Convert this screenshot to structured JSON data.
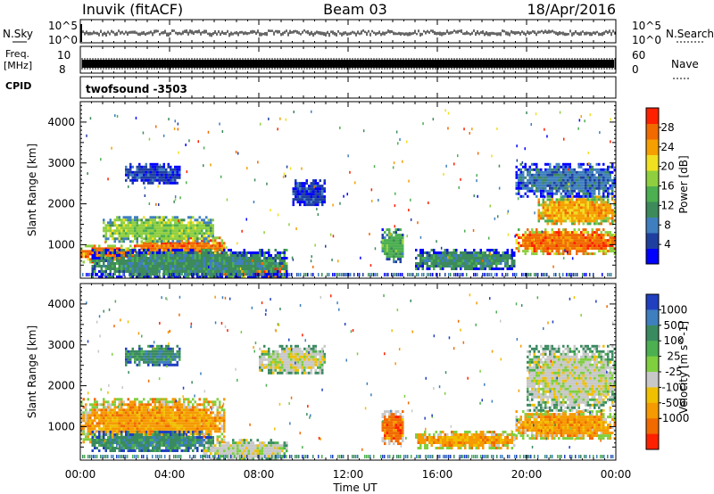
{
  "header": {
    "station": "Inuvik (fitACF)",
    "beam": "Beam 03",
    "date": "18/Apr/2016"
  },
  "status_panels": {
    "nsky_label": "N.Sky",
    "nsky_ticks": [
      "10^5",
      "10^0"
    ],
    "nsearch_label": "N.Search",
    "nsearch_ticks": [
      "10^5",
      "10^0"
    ],
    "freq_label_line1": "Freq.",
    "freq_label_line2": "[MHz]",
    "freq_ticks": [
      "10",
      "8"
    ],
    "nave_label": "Nave",
    "nave_ticks": [
      "60",
      "0"
    ],
    "cpid_label": "CPID",
    "cpid_value": "twofsound -3503"
  },
  "time_axis": {
    "label": "Time UT",
    "ticks": [
      "00:00",
      "04:00",
      "08:00",
      "12:00",
      "16:00",
      "20:00",
      "00:00"
    ]
  },
  "colors": {
    "power_scale": [
      "#0000ff",
      "#1f3fa0",
      "#3f7fbf",
      "#3d8a5a",
      "#4caf50",
      "#8fcf3f",
      "#f0e020",
      "#f5a000",
      "#f06a00",
      "#ff2000"
    ],
    "velocity_scale": [
      "#2040c0",
      "#3e7fbf",
      "#3a8a60",
      "#4caf50",
      "#7fcf3f",
      "#c8c8c8",
      "#f0c000",
      "#f59a00",
      "#f06a00",
      "#ff2000"
    ]
  },
  "chart_data": [
    {
      "type": "heatmap",
      "title": "Power",
      "xlabel": "Time UT",
      "ylabel": "Slant Range [km]",
      "xlim": [
        0,
        24
      ],
      "ylim": [
        180,
        4500
      ],
      "y_ticks": [
        "1000",
        "2000",
        "3000",
        "4000"
      ],
      "colorbar": {
        "label": "Power [dB]",
        "ticks": [
          "4",
          "8",
          "12",
          "16",
          "20",
          "24",
          "28"
        ],
        "range": [
          0,
          32
        ]
      },
      "regions": [
        {
          "t": [
            0.0,
            2.5
          ],
          "range_km": [
            600,
            1000
          ],
          "value": 28
        },
        {
          "t": [
            2.5,
            6.5
          ],
          "range_km": [
            700,
            1200
          ],
          "value": 26
        },
        {
          "t": [
            1.0,
            6.0
          ],
          "range_km": [
            1100,
            1700
          ],
          "value": 16
        },
        {
          "t": [
            5.5,
            9.3
          ],
          "range_km": [
            200,
            700
          ],
          "value": 28
        },
        {
          "t": [
            0.5,
            9.3
          ],
          "range_km": [
            200,
            900
          ],
          "value": 12
        },
        {
          "t": [
            2.0,
            4.5
          ],
          "range_km": [
            2500,
            3000
          ],
          "value": 6
        },
        {
          "t": [
            9.5,
            11.0
          ],
          "range_km": [
            2000,
            2600
          ],
          "value": 6
        },
        {
          "t": [
            13.5,
            14.5
          ],
          "range_km": [
            600,
            1400
          ],
          "value": 14
        },
        {
          "t": [
            15.0,
            19.5
          ],
          "range_km": [
            400,
            900
          ],
          "value": 10
        },
        {
          "t": [
            19.5,
            24.0
          ],
          "range_km": [
            800,
            1400
          ],
          "value": 26
        },
        {
          "t": [
            20.5,
            24.0
          ],
          "range_km": [
            1500,
            2200
          ],
          "value": 24
        },
        {
          "t": [
            19.5,
            24.0
          ],
          "range_km": [
            2200,
            3000
          ],
          "value": 8
        }
      ]
    },
    {
      "type": "heatmap",
      "title": "Velocity",
      "xlabel": "Time UT",
      "ylabel": "Slant Range [km]",
      "xlim": [
        0,
        24
      ],
      "ylim": [
        180,
        4500
      ],
      "y_ticks": [
        "1000",
        "2000",
        "3000",
        "4000"
      ],
      "colorbar": {
        "label": "Velocity [m s^-1]",
        "ticks": [
          "1000",
          "500",
          "100",
          "25",
          "-25",
          "-100",
          "-500",
          "-1000"
        ]
      },
      "regions": [
        {
          "t": [
            0.0,
            6.5
          ],
          "range_km": [
            600,
            1700
          ],
          "value": -100
        },
        {
          "t": [
            0.5,
            6.0
          ],
          "range_km": [
            400,
            900
          ],
          "value": 100
        },
        {
          "t": [
            5.5,
            9.3
          ],
          "range_km": [
            200,
            700
          ],
          "value": 0
        },
        {
          "t": [
            2.0,
            4.5
          ],
          "range_km": [
            2500,
            3000
          ],
          "value": 100
        },
        {
          "t": [
            8.0,
            11.0
          ],
          "range_km": [
            2300,
            3000
          ],
          "value": 0
        },
        {
          "t": [
            13.5,
            14.5
          ],
          "range_km": [
            600,
            1400
          ],
          "value": -500
        },
        {
          "t": [
            15.0,
            19.5
          ],
          "range_km": [
            500,
            900
          ],
          "value": -100
        },
        {
          "t": [
            19.5,
            24.0
          ],
          "range_km": [
            700,
            1400
          ],
          "value": -100
        },
        {
          "t": [
            20.0,
            24.0
          ],
          "range_km": [
            1400,
            3000
          ],
          "value": 0
        }
      ]
    }
  ]
}
